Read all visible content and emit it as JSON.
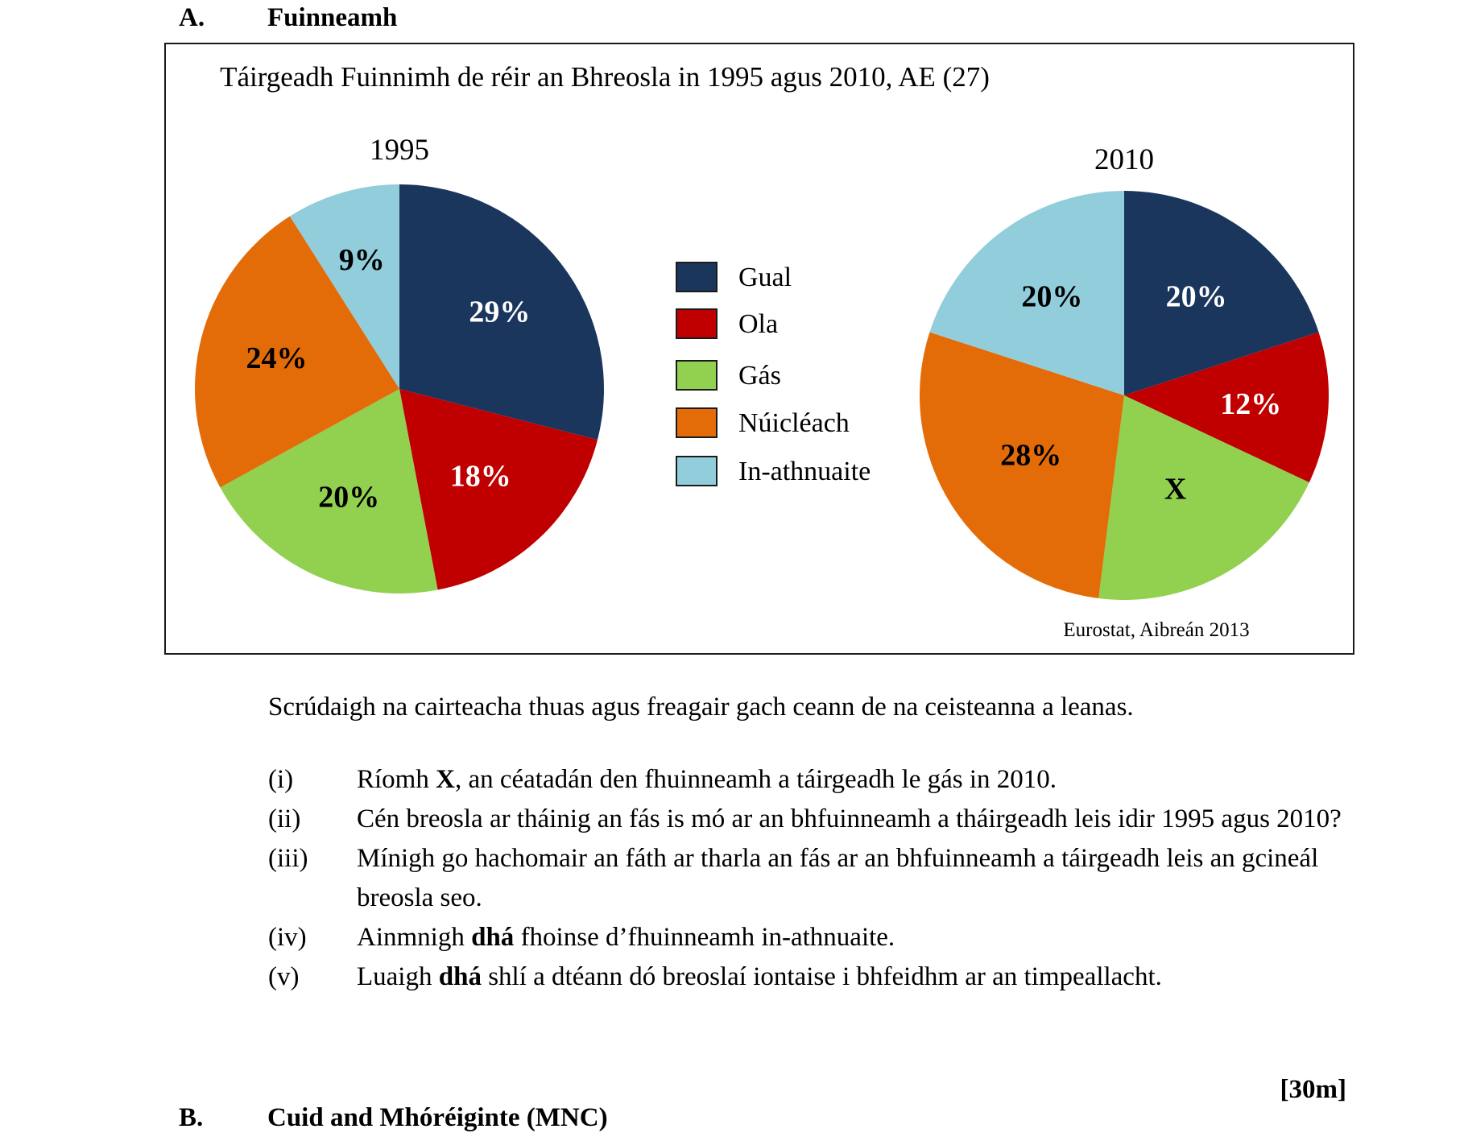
{
  "section": {
    "letter": "A.",
    "title": "Fuinneamh"
  },
  "chart_data": {
    "type": "pie",
    "title": "Táirgeadh Fuinnimh de réir an Bhreosla in 1995 agus 2010, AE (27)",
    "source": "Eurostat, Aibreán 2013",
    "legend": [
      {
        "label": "Gual",
        "color": "#1b365d"
      },
      {
        "label": "Ola",
        "color": "#c00000"
      },
      {
        "label": "Gás",
        "color": "#92d050"
      },
      {
        "label": "Núicléach",
        "color": "#e36c09"
      },
      {
        "label": "In-athnuaite",
        "color": "#92cddc"
      }
    ],
    "charts": [
      {
        "year": "1995",
        "slices": [
          {
            "fuel": "Gual",
            "value": 29,
            "label": "29%",
            "color": "#1b365d",
            "label_color": "white"
          },
          {
            "fuel": "Ola",
            "value": 18,
            "label": "18%",
            "color": "#c00000",
            "label_color": "white"
          },
          {
            "fuel": "Gás",
            "value": 20,
            "label": "20%",
            "color": "#92d050",
            "label_color": "black"
          },
          {
            "fuel": "Núicléach",
            "value": 24,
            "label": "24%",
            "color": "#e36c09",
            "label_color": "black"
          },
          {
            "fuel": "In-athnuaite",
            "value": 9,
            "label": "9%",
            "color": "#92cddc",
            "label_color": "black"
          }
        ]
      },
      {
        "year": "2010",
        "slices": [
          {
            "fuel": "Gual",
            "value": 20,
            "label": "20%",
            "color": "#1b365d",
            "label_color": "white"
          },
          {
            "fuel": "Ola",
            "value": 12,
            "label": "12%",
            "color": "#c00000",
            "label_color": "white"
          },
          {
            "fuel": "Gás",
            "value": 20,
            "label": "X",
            "color": "#92d050",
            "label_color": "black"
          },
          {
            "fuel": "Núicléach",
            "value": 28,
            "label": "28%",
            "color": "#e36c09",
            "label_color": "black"
          },
          {
            "fuel": "In-athnuaite",
            "value": 20,
            "label": "20%",
            "color": "#92cddc",
            "label_color": "black"
          }
        ]
      }
    ]
  },
  "intro": "Scrúdaigh na cairteacha thuas agus freagair gach ceann de na ceisteanna a leanas.",
  "questions": [
    {
      "num": "(i)",
      "before": "Ríomh ",
      "bold": "X",
      "after": ", an céatadán den fhuinneamh a táirgeadh le gás in 2010."
    },
    {
      "num": "(ii)",
      "before": "Cén breosla ar tháinig an fás is mó ar an bhfuinneamh a tháirgeadh leis idir 1995 agus 2010?",
      "bold": "",
      "after": ""
    },
    {
      "num": "(iii)",
      "before": "Mínigh go hachomair an fáth ar tharla an fás ar an bhfuinneamh a táirgeadh leis an gcineál breosla seo.",
      "bold": "",
      "after": ""
    },
    {
      "num": "(iv)",
      "before": "Ainmnigh ",
      "bold": "dhá",
      "after": " fhoinse d’fhuinneamh in-athnuaite."
    },
    {
      "num": "(v)",
      "before": "Luaigh ",
      "bold": "dhá",
      "after": " shlí a dtéann dó breoslaí iontaise i bhfeidhm ar an timpeallacht."
    }
  ],
  "marks": "[30m]",
  "next_section": {
    "letter": "B.",
    "title": "Cuid and Mhóréiginte (MNC)"
  }
}
